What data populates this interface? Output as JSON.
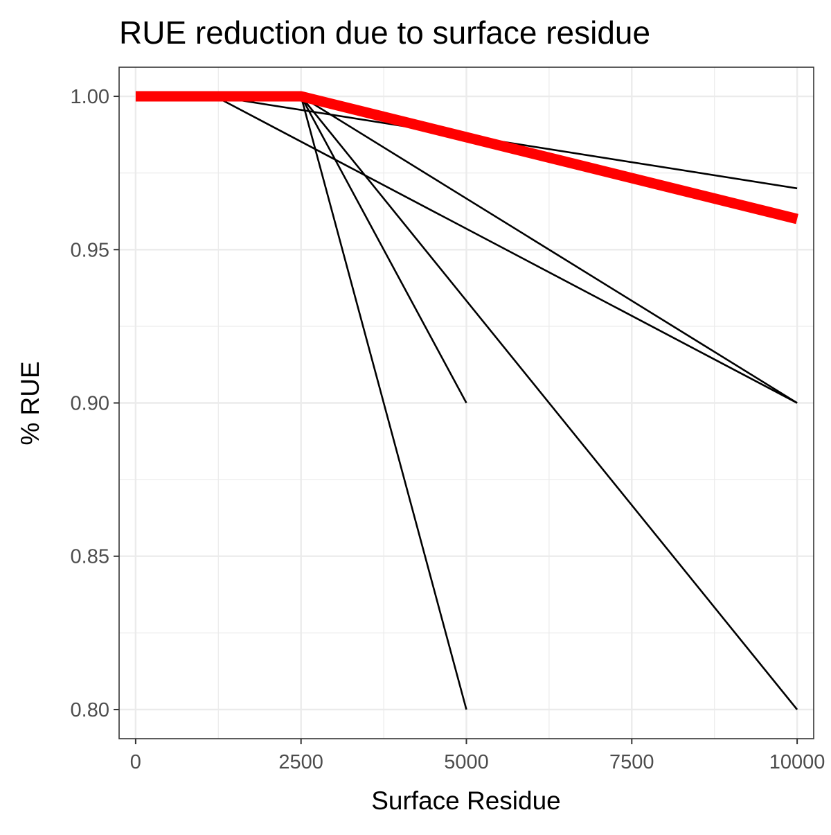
{
  "chart_data": {
    "type": "line",
    "title": "RUE reduction due to surface residue",
    "xlabel": "Surface Residue",
    "ylabel": "% RUE",
    "xlim": [
      -250,
      10250
    ],
    "ylim": [
      0.7905,
      1.0095
    ],
    "x_ticks": [
      0,
      2500,
      5000,
      7500,
      10000
    ],
    "x_tick_labels": [
      "0",
      "2500",
      "5000",
      "7500",
      "10000"
    ],
    "y_ticks": [
      0.8,
      0.85,
      0.9,
      0.95,
      1.0
    ],
    "y_tick_labels": [
      "0.80",
      "0.85",
      "0.90",
      "0.95",
      "1.00"
    ],
    "grid": true,
    "legend": "none",
    "colors": {
      "highlight": "#ff0000",
      "series": "#000000",
      "grid": "#ebebeb",
      "panel_border": "#333333"
    },
    "series": [
      {
        "x": [
          1200,
          10000
        ],
        "y": [
          1.0,
          0.9
        ],
        "color": "#000000",
        "width": "thin"
      },
      {
        "x": [
          2500,
          10000
        ],
        "y": [
          1.0,
          0.9
        ],
        "color": "#000000",
        "width": "thin"
      },
      {
        "x": [
          1200,
          10000
        ],
        "y": [
          1.0,
          0.97
        ],
        "color": "#000000",
        "width": "thin"
      },
      {
        "x": [
          2500,
          5000
        ],
        "y": [
          1.0,
          0.8
        ],
        "color": "#000000",
        "width": "thin"
      },
      {
        "x": [
          2500,
          5000
        ],
        "y": [
          1.0,
          0.9
        ],
        "color": "#000000",
        "width": "thin"
      },
      {
        "x": [
          2500,
          10000
        ],
        "y": [
          1.0,
          0.8
        ],
        "color": "#000000",
        "width": "thin"
      },
      {
        "x": [
          0,
          2500,
          10000
        ],
        "y": [
          1.0,
          1.0,
          0.96
        ],
        "color": "#ff0000",
        "width": "thick"
      }
    ]
  }
}
